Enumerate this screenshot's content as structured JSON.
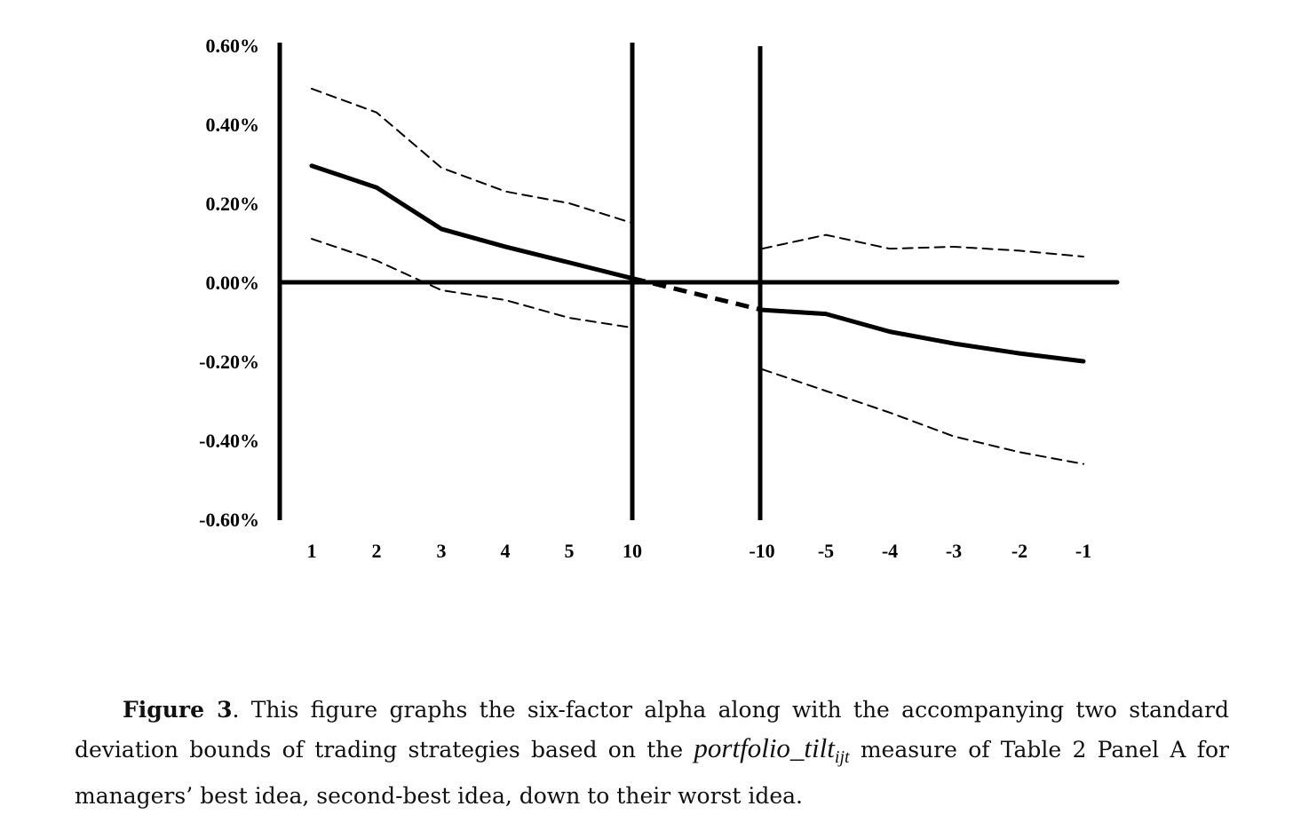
{
  "chart_data": {
    "type": "line",
    "x": [
      "1",
      "2",
      "3",
      "4",
      "5",
      "10",
      "-10",
      "-5",
      "-4",
      "-3",
      "-2",
      "-1"
    ],
    "y_ticks": [
      "0.60%",
      "0.40%",
      "0.20%",
      "0.00%",
      "-0.20%",
      "-0.40%",
      "-0.60%"
    ],
    "ylim": [
      -0.6,
      0.6
    ],
    "grid": false,
    "series": [
      {
        "role": "alpha",
        "style": "solid-thick",
        "values": [
          0.295,
          0.24,
          0.135,
          0.09,
          0.05,
          0.01,
          -0.07,
          -0.08,
          -0.125,
          -0.155,
          -0.18,
          -0.2
        ]
      },
      {
        "role": "upper-bound",
        "style": "dashed-thin",
        "values": [
          0.49,
          0.43,
          0.29,
          0.23,
          0.2,
          0.15,
          0.085,
          0.12,
          0.085,
          0.09,
          0.08,
          0.065
        ]
      },
      {
        "role": "lower-bound",
        "style": "dashed-thin",
        "values": [
          0.11,
          0.055,
          -0.02,
          -0.045,
          -0.09,
          -0.115,
          -0.22,
          -0.275,
          -0.33,
          -0.39,
          -0.43,
          -0.46
        ]
      }
    ],
    "connector": {
      "from_index": 5,
      "to_index": 6,
      "style": "dashed-thick"
    }
  },
  "caption": {
    "label": "Figure 3",
    "text_before": ". This figure graphs the six-factor alpha along with the accompanying two standard deviation bounds of trading strategies based on the ",
    "math": "portfolio_tilt",
    "subscript": "ijt",
    "text_after": " measure of Table 2 Panel A for managers’ best idea, second-best idea, down to their worst idea."
  }
}
